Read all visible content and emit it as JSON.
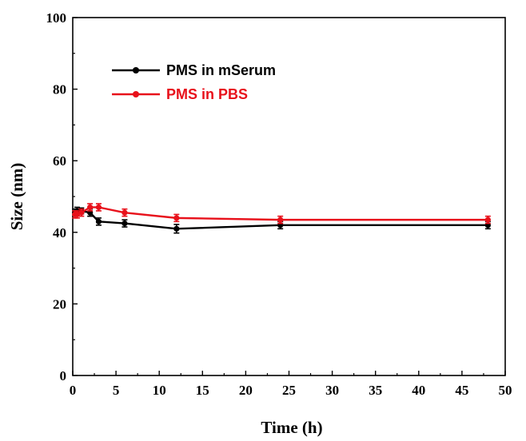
{
  "chart_data": {
    "type": "line",
    "xlabel": "Time (h)",
    "ylabel": "Size (nm)",
    "xlim": [
      0,
      50
    ],
    "ylim": [
      0,
      100
    ],
    "xticks": [
      0,
      5,
      10,
      15,
      20,
      25,
      30,
      35,
      40,
      45,
      50
    ],
    "yticks": [
      0,
      20,
      40,
      60,
      80,
      100
    ],
    "grid": false,
    "legend_position": "top-left",
    "series": [
      {
        "name": "PMS in mSerum",
        "color": "#000000",
        "x": [
          0.25,
          0.5,
          1,
          2,
          3,
          6,
          12,
          24,
          48
        ],
        "y": [
          45.5,
          46,
          46,
          45.5,
          43,
          42.5,
          41,
          42,
          42
        ],
        "err": [
          1,
          1,
          0.8,
          1,
          1,
          1,
          1.2,
          1,
          1
        ]
      },
      {
        "name": "PMS in PBS",
        "color": "#e8111b",
        "x": [
          0.25,
          0.5,
          1,
          2,
          3,
          6,
          12,
          24,
          48
        ],
        "y": [
          45,
          45,
          45.5,
          47,
          47,
          45.5,
          44,
          43.5,
          43.5
        ],
        "err": [
          1,
          1,
          1,
          1,
          1,
          1,
          1,
          1,
          1
        ]
      }
    ]
  }
}
